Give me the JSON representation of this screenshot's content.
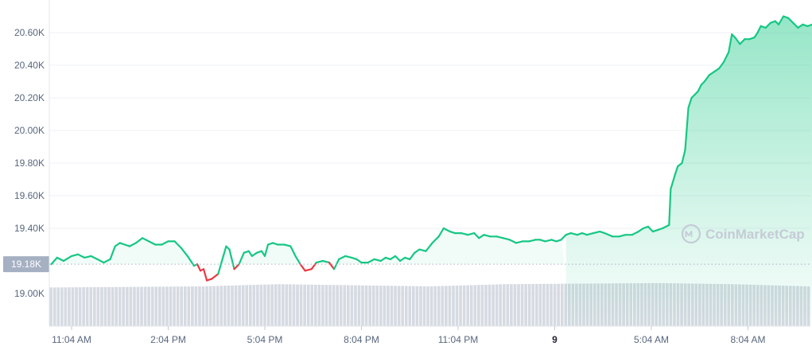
{
  "chart_data": {
    "type": "line",
    "ylim": [
      18950,
      20720
    ],
    "yticks": [
      {
        "value": 19000,
        "label": "19.00K"
      },
      {
        "value": 19400,
        "label": "19.40K"
      },
      {
        "value": 19600,
        "label": "19.60K"
      },
      {
        "value": 19800,
        "label": "19.80K"
      },
      {
        "value": 20000,
        "label": "20.00K"
      },
      {
        "value": 20200,
        "label": "20.20K"
      },
      {
        "value": 20400,
        "label": "20.40K"
      },
      {
        "value": 20600,
        "label": "20.60K"
      }
    ],
    "xticks": [
      {
        "t": 1.0,
        "label": "11:04 AM",
        "bold": false
      },
      {
        "t": 4.0,
        "label": "2:04 PM",
        "bold": false
      },
      {
        "t": 7.0,
        "label": "5:04 PM",
        "bold": false
      },
      {
        "t": 10.0,
        "label": "8:04 PM",
        "bold": false
      },
      {
        "t": 13.0,
        "label": "11:04 PM",
        "bold": false
      },
      {
        "t": 16.0,
        "label": "9",
        "bold": true
      },
      {
        "t": 19.0,
        "label": "5:04 AM",
        "bold": false
      },
      {
        "t": 22.0,
        "label": "8:04 AM",
        "bold": false
      }
    ],
    "reference": {
      "value": 19180,
      "label": "19.18K"
    },
    "series": [
      {
        "color_up": "#16c784",
        "color_down": "#ea3943",
        "points": [
          [
            0.37,
            19180
          ],
          [
            0.55,
            19220
          ],
          [
            0.75,
            19200
          ],
          [
            1.0,
            19230
          ],
          [
            1.2,
            19240
          ],
          [
            1.4,
            19220
          ],
          [
            1.6,
            19230
          ],
          [
            1.8,
            19210
          ],
          [
            2.0,
            19190
          ],
          [
            2.2,
            19210
          ],
          [
            2.35,
            19290
          ],
          [
            2.5,
            19310
          ],
          [
            2.65,
            19300
          ],
          [
            2.8,
            19290
          ],
          [
            3.0,
            19310
          ],
          [
            3.2,
            19340
          ],
          [
            3.4,
            19320
          ],
          [
            3.6,
            19300
          ],
          [
            3.8,
            19300
          ],
          [
            4.0,
            19320
          ],
          [
            4.2,
            19320
          ],
          [
            4.4,
            19280
          ],
          [
            4.6,
            19230
          ],
          [
            4.8,
            19170
          ],
          [
            4.9,
            19180
          ],
          [
            5.0,
            19140
          ],
          [
            5.1,
            19150
          ],
          [
            5.2,
            19080
          ],
          [
            5.35,
            19090
          ],
          [
            5.55,
            19120
          ],
          [
            5.8,
            19290
          ],
          [
            5.9,
            19270
          ],
          [
            6.05,
            19150
          ],
          [
            6.2,
            19180
          ],
          [
            6.35,
            19250
          ],
          [
            6.5,
            19260
          ],
          [
            6.6,
            19230
          ],
          [
            6.75,
            19250
          ],
          [
            6.9,
            19260
          ],
          [
            7.0,
            19230
          ],
          [
            7.1,
            19300
          ],
          [
            7.25,
            19310
          ],
          [
            7.4,
            19300
          ],
          [
            7.6,
            19300
          ],
          [
            7.8,
            19290
          ],
          [
            7.95,
            19230
          ],
          [
            8.1,
            19180
          ],
          [
            8.25,
            19140
          ],
          [
            8.45,
            19150
          ],
          [
            8.6,
            19190
          ],
          [
            8.8,
            19200
          ],
          [
            9.0,
            19190
          ],
          [
            9.15,
            19150
          ],
          [
            9.3,
            19210
          ],
          [
            9.5,
            19230
          ],
          [
            9.7,
            19220
          ],
          [
            9.85,
            19210
          ],
          [
            10.0,
            19190
          ],
          [
            10.2,
            19190
          ],
          [
            10.4,
            19210
          ],
          [
            10.6,
            19200
          ],
          [
            10.75,
            19220
          ],
          [
            10.9,
            19210
          ],
          [
            11.05,
            19230
          ],
          [
            11.2,
            19200
          ],
          [
            11.35,
            19220
          ],
          [
            11.5,
            19210
          ],
          [
            11.65,
            19250
          ],
          [
            11.8,
            19270
          ],
          [
            12.0,
            19260
          ],
          [
            12.2,
            19310
          ],
          [
            12.4,
            19350
          ],
          [
            12.55,
            19400
          ],
          [
            12.75,
            19380
          ],
          [
            12.9,
            19370
          ],
          [
            13.1,
            19370
          ],
          [
            13.3,
            19360
          ],
          [
            13.5,
            19370
          ],
          [
            13.65,
            19340
          ],
          [
            13.8,
            19360
          ],
          [
            14.0,
            19350
          ],
          [
            14.2,
            19350
          ],
          [
            14.4,
            19340
          ],
          [
            14.6,
            19330
          ],
          [
            14.8,
            19310
          ],
          [
            15.0,
            19320
          ],
          [
            15.2,
            19320
          ],
          [
            15.4,
            19330
          ],
          [
            15.55,
            19330
          ],
          [
            15.7,
            19320
          ],
          [
            15.9,
            19330
          ],
          [
            16.05,
            19320
          ],
          [
            16.2,
            19330
          ],
          [
            16.35,
            19360
          ],
          [
            16.5,
            19370
          ],
          [
            16.7,
            19360
          ],
          [
            16.85,
            19370
          ],
          [
            17.0,
            19360
          ],
          [
            17.2,
            19370
          ],
          [
            17.4,
            19380
          ],
          [
            17.55,
            19370
          ],
          [
            17.8,
            19350
          ],
          [
            18.0,
            19350
          ],
          [
            18.2,
            19360
          ],
          [
            18.4,
            19360
          ],
          [
            18.6,
            19380
          ],
          [
            18.75,
            19400
          ],
          [
            18.9,
            19410
          ],
          [
            19.05,
            19380
          ],
          [
            19.2,
            19390
          ],
          [
            19.35,
            19400
          ],
          [
            19.55,
            19420
          ],
          [
            19.6,
            19640
          ],
          [
            19.72,
            19720
          ],
          [
            19.82,
            19780
          ],
          [
            19.95,
            19800
          ],
          [
            20.05,
            19880
          ],
          [
            20.15,
            20140
          ],
          [
            20.25,
            20200
          ],
          [
            20.35,
            20220
          ],
          [
            20.45,
            20240
          ],
          [
            20.55,
            20280
          ],
          [
            20.65,
            20300
          ],
          [
            20.8,
            20340
          ],
          [
            20.95,
            20360
          ],
          [
            21.1,
            20380
          ],
          [
            21.25,
            20420
          ],
          [
            21.4,
            20480
          ],
          [
            21.5,
            20590
          ],
          [
            21.6,
            20570
          ],
          [
            21.75,
            20530
          ],
          [
            21.9,
            20560
          ],
          [
            22.05,
            20560
          ],
          [
            22.2,
            20570
          ],
          [
            22.3,
            20600
          ],
          [
            22.4,
            20640
          ],
          [
            22.55,
            20630
          ],
          [
            22.7,
            20660
          ],
          [
            22.85,
            20670
          ],
          [
            22.95,
            20650
          ],
          [
            23.1,
            20700
          ],
          [
            23.25,
            20690
          ],
          [
            23.4,
            20660
          ],
          [
            23.55,
            20630
          ],
          [
            23.7,
            20650
          ],
          [
            23.85,
            20640
          ],
          [
            24.0,
            20650
          ],
          [
            24.15,
            20650
          ],
          [
            24.3,
            20670
          ]
        ]
      }
    ],
    "volume": {
      "bars": 210,
      "profile": [
        [
          0.0,
          0.35
        ],
        [
          0.2,
          0.36
        ],
        [
          0.3,
          0.38
        ],
        [
          0.5,
          0.36
        ],
        [
          0.6,
          0.38
        ],
        [
          0.8,
          0.39
        ],
        [
          0.9,
          0.38
        ],
        [
          1.0,
          0.36
        ],
        [
          1.0,
          0.38
        ]
      ]
    }
  },
  "watermark": {
    "text": "CoinMarketCap"
  }
}
